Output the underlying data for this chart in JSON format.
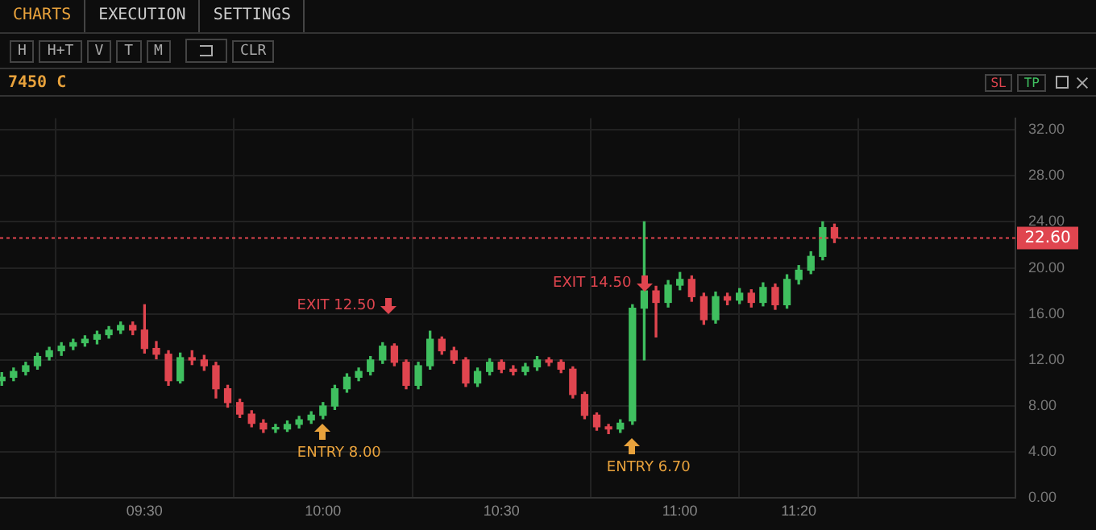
{
  "chart_data": {
    "type": "candlestick",
    "title": "7450 C",
    "x": [
      9.1,
      9.133,
      9.167,
      9.2,
      9.233,
      9.267,
      9.3,
      9.333,
      9.367,
      9.4,
      9.433,
      9.467,
      9.5,
      9.533,
      9.567,
      9.6,
      9.633,
      9.667,
      9.7,
      9.733,
      9.767,
      9.8,
      9.833,
      9.867,
      9.9,
      9.933,
      9.967,
      10.0,
      10.033,
      10.067,
      10.1,
      10.133,
      10.167,
      10.2,
      10.233,
      10.267,
      10.3,
      10.333,
      10.367,
      10.4,
      10.433,
      10.467,
      10.5,
      10.533,
      10.567,
      10.6,
      10.633,
      10.667,
      10.7,
      10.733,
      10.767,
      10.8,
      10.833,
      10.867,
      10.9,
      10.933,
      10.967,
      11.0,
      11.033,
      11.067,
      11.1,
      11.133,
      11.167,
      11.2,
      11.233,
      11.267,
      11.3,
      11.333,
      11.367,
      11.4,
      11.433
    ],
    "ohlc": [
      [
        10.2,
        10.9,
        9.8,
        10.5
      ],
      [
        10.5,
        11.3,
        10.2,
        11.0
      ],
      [
        11.0,
        11.8,
        10.7,
        11.5
      ],
      [
        11.5,
        12.6,
        11.2,
        12.3
      ],
      [
        12.3,
        13.1,
        12.0,
        12.8
      ],
      [
        12.8,
        13.5,
        12.4,
        13.2
      ],
      [
        13.2,
        13.8,
        12.9,
        13.5
      ],
      [
        13.5,
        14.1,
        13.2,
        13.8
      ],
      [
        13.8,
        14.5,
        13.4,
        14.2
      ],
      [
        14.2,
        14.9,
        13.9,
        14.6
      ],
      [
        14.6,
        15.3,
        14.3,
        15.0
      ],
      [
        15.0,
        15.3,
        14.2,
        14.6
      ],
      [
        14.6,
        16.8,
        12.6,
        13.0
      ],
      [
        13.0,
        13.6,
        12.1,
        12.5
      ],
      [
        12.5,
        12.8,
        9.8,
        10.2
      ],
      [
        10.2,
        12.6,
        10.0,
        12.2
      ],
      [
        12.2,
        12.8,
        11.6,
        12.0
      ],
      [
        12.0,
        12.4,
        11.1,
        11.5
      ],
      [
        11.5,
        11.8,
        8.7,
        9.5
      ],
      [
        9.5,
        9.8,
        7.9,
        8.3
      ],
      [
        8.3,
        8.6,
        7.0,
        7.3
      ],
      [
        7.3,
        7.6,
        6.2,
        6.5
      ],
      [
        6.5,
        6.8,
        5.7,
        6.0
      ],
      [
        6.0,
        6.4,
        5.7,
        6.0
      ],
      [
        6.0,
        6.7,
        5.8,
        6.4
      ],
      [
        6.4,
        7.1,
        6.1,
        6.8
      ],
      [
        6.8,
        7.5,
        6.5,
        7.2
      ],
      [
        7.2,
        8.3,
        6.9,
        8.0
      ],
      [
        8.0,
        9.8,
        7.7,
        9.5
      ],
      [
        9.5,
        10.8,
        9.2,
        10.5
      ],
      [
        10.5,
        11.3,
        10.2,
        11.0
      ],
      [
        11.0,
        12.3,
        10.7,
        12.0
      ],
      [
        12.0,
        13.5,
        11.7,
        13.2
      ],
      [
        13.2,
        13.4,
        11.5,
        11.8
      ],
      [
        11.8,
        12.0,
        9.5,
        9.8
      ],
      [
        9.8,
        11.8,
        9.5,
        11.5
      ],
      [
        11.5,
        14.5,
        11.2,
        13.8
      ],
      [
        13.8,
        14.0,
        12.5,
        12.8
      ],
      [
        12.8,
        13.1,
        11.7,
        12.0
      ],
      [
        12.0,
        12.2,
        9.7,
        10.0
      ],
      [
        10.0,
        11.3,
        9.7,
        11.0
      ],
      [
        11.0,
        12.1,
        10.7,
        11.8
      ],
      [
        11.8,
        12.0,
        10.9,
        11.2
      ],
      [
        11.2,
        11.5,
        10.7,
        11.0
      ],
      [
        11.0,
        11.7,
        10.7,
        11.4
      ],
      [
        11.4,
        12.3,
        11.1,
        12.0
      ],
      [
        12.0,
        12.2,
        11.5,
        11.8
      ],
      [
        11.8,
        12.0,
        10.9,
        11.2
      ],
      [
        11.2,
        11.4,
        8.7,
        9.0
      ],
      [
        9.0,
        9.2,
        6.9,
        7.2
      ],
      [
        7.2,
        7.4,
        5.9,
        6.2
      ],
      [
        6.2,
        6.4,
        5.6,
        6.0
      ],
      [
        6.0,
        6.8,
        5.7,
        6.5
      ],
      [
        6.7,
        16.8,
        6.4,
        16.5
      ],
      [
        16.5,
        24.0,
        12.0,
        18.0
      ],
      [
        18.0,
        18.4,
        14.0,
        17.0
      ],
      [
        17.0,
        18.9,
        16.6,
        18.5
      ],
      [
        18.5,
        19.6,
        18.1,
        19.0
      ],
      [
        19.0,
        19.3,
        17.1,
        17.5
      ],
      [
        17.5,
        17.8,
        15.1,
        15.5
      ],
      [
        15.5,
        17.9,
        15.2,
        17.5
      ],
      [
        17.5,
        17.8,
        16.8,
        17.2
      ],
      [
        17.2,
        18.2,
        16.9,
        17.8
      ],
      [
        17.8,
        18.1,
        16.6,
        17.0
      ],
      [
        17.0,
        18.7,
        16.7,
        18.3
      ],
      [
        18.3,
        18.6,
        16.4,
        16.8
      ],
      [
        16.8,
        19.4,
        16.5,
        19.0
      ],
      [
        19.0,
        20.2,
        18.6,
        19.8
      ],
      [
        19.8,
        21.4,
        19.5,
        21.0
      ],
      [
        21.0,
        24.0,
        20.7,
        23.5
      ],
      [
        23.5,
        23.8,
        22.2,
        22.6
      ]
    ],
    "colors": [
      "#3fbf5f",
      "#3fbf5f",
      "#3fbf5f",
      "#3fbf5f",
      "#3fbf5f",
      "#3fbf5f",
      "#3fbf5f",
      "#3fbf5f",
      "#3fbf5f",
      "#3fbf5f",
      "#3fbf5f",
      "#e0454f",
      "#e0454f",
      "#e0454f",
      "#e0454f",
      "#3fbf5f",
      "#e0454f",
      "#e0454f",
      "#e0454f",
      "#e0454f",
      "#e0454f",
      "#e0454f",
      "#e0454f",
      "#3fbf5f",
      "#3fbf5f",
      "#3fbf5f",
      "#3fbf5f",
      "#3fbf5f",
      "#3fbf5f",
      "#3fbf5f",
      "#3fbf5f",
      "#3fbf5f",
      "#3fbf5f",
      "#e0454f",
      "#e0454f",
      "#3fbf5f",
      "#3fbf5f",
      "#e0454f",
      "#e0454f",
      "#e0454f",
      "#3fbf5f",
      "#3fbf5f",
      "#e0454f",
      "#e0454f",
      "#3fbf5f",
      "#3fbf5f",
      "#e0454f",
      "#e0454f",
      "#e0454f",
      "#e0454f",
      "#e0454f",
      "#e0454f",
      "#3fbf5f",
      "#3fbf5f",
      "#3fbf5f",
      "#e0454f",
      "#3fbf5f",
      "#3fbf5f",
      "#e0454f",
      "#e0454f",
      "#3fbf5f",
      "#e0454f",
      "#3fbf5f",
      "#e0454f",
      "#3fbf5f",
      "#e0454f",
      "#3fbf5f",
      "#3fbf5f",
      "#3fbf5f",
      "#3fbf5f",
      "#e0454f"
    ],
    "ylim": [
      0,
      33
    ],
    "yticks": [
      {
        "value": 0,
        "label": "0.00"
      },
      {
        "value": 4,
        "label": "4.00"
      },
      {
        "value": 8,
        "label": "8.00"
      },
      {
        "value": 12,
        "label": "12.00"
      },
      {
        "value": 16,
        "label": "16.00"
      },
      {
        "value": 20,
        "label": "20.00"
      },
      {
        "value": 24,
        "label": "24.00"
      },
      {
        "value": 28,
        "label": "28.00"
      },
      {
        "value": 32,
        "label": "32.00"
      }
    ],
    "xlim": [
      9.095,
      11.94
    ],
    "xticks": [
      {
        "value": 9.5,
        "label": "09:30"
      },
      {
        "value": 10,
        "label": "10:00"
      },
      {
        "value": 10.5,
        "label": "10:30"
      },
      {
        "value": 11,
        "label": "11:00"
      },
      {
        "value": 11.333,
        "label": "11:20"
      }
    ],
    "grid": true,
    "legend": false,
    "ref_lines": [
      {
        "axis": "y",
        "value": 22.6,
        "label": "22.60",
        "color": "#e0454f",
        "line_style": "dotted"
      }
    ],
    "annotations": [
      "CHARTS",
      "EXECUTION",
      "SETTINGS",
      "H",
      "H+T",
      "V",
      "T",
      "M",
      "CLR",
      "SL",
      "TP",
      {
        "text": "ENTRY 8.00",
        "x": 10.0,
        "y": 8.0
      },
      {
        "text": "EXIT 12.50",
        "x": 10.183,
        "y": 12.5
      },
      {
        "text": "ENTRY 6.70",
        "x": 10.867,
        "y": 6.7
      },
      {
        "text": "EXIT 14.50",
        "x": 10.9,
        "y": 14.5
      }
    ]
  }
}
